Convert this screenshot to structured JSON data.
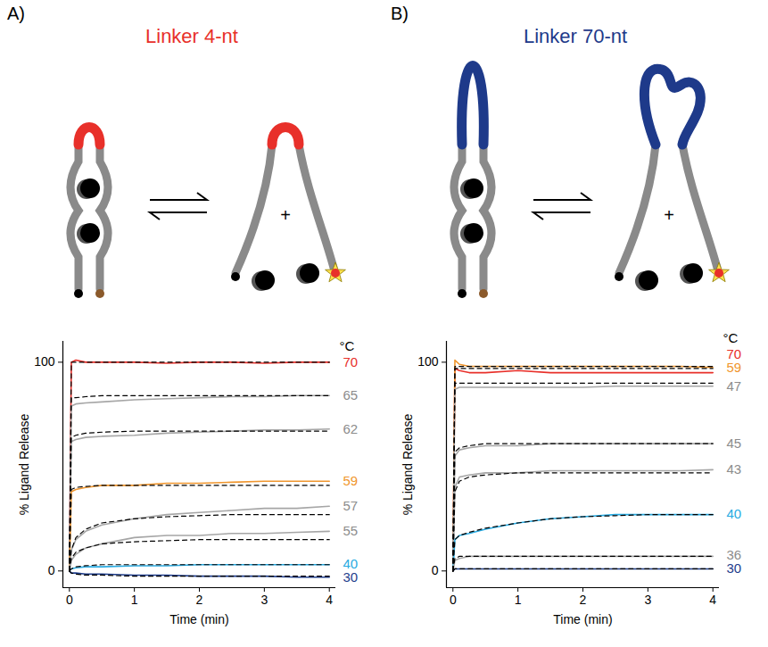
{
  "chart_data": [
    {
      "type": "line",
      "panel": "A)",
      "title": "Linker 4-nt",
      "color": "#e8302a",
      "diagram": {
        "plus": "+"
      },
      "x_label": "Time (min)",
      "y_label": "% Ligand Release",
      "legend_title": "°C",
      "xlim": [
        -0.1,
        4.1
      ],
      "xticks": [
        0,
        1,
        2,
        3,
        4
      ],
      "ylim": [
        -8,
        110
      ],
      "yticks": [
        0,
        100
      ],
      "x": [
        0,
        0.03,
        0.1,
        0.25,
        0.5,
        1,
        1.5,
        2,
        2.5,
        3,
        3.5,
        4
      ],
      "series": [
        {
          "name": "70",
          "color": "#e8302a",
          "values": [
            0,
            100,
            101,
            100,
            100,
            100,
            99.5,
            100,
            100,
            99.5,
            100,
            100
          ],
          "fit": [
            0,
            100,
            100,
            100,
            100,
            100,
            100,
            100,
            100,
            100,
            100,
            100
          ]
        },
        {
          "name": "65",
          "color": "#a6a6a6",
          "values": [
            0,
            79,
            80,
            80.5,
            81,
            82,
            82.5,
            83,
            83.5,
            83.5,
            84,
            84
          ],
          "fit": [
            0,
            83,
            83,
            83.5,
            84,
            84,
            84,
            84,
            84,
            84,
            84,
            84
          ]
        },
        {
          "name": "62",
          "color": "#a6a6a6",
          "values": [
            0,
            62,
            63,
            64,
            64.5,
            65,
            66,
            66.5,
            67,
            67.5,
            67.5,
            68
          ],
          "fit": [
            0,
            64,
            65,
            66,
            66.5,
            67,
            67,
            67,
            67,
            67,
            67,
            67
          ]
        },
        {
          "name": "59",
          "color": "#f0962e",
          "values": [
            0,
            38,
            39,
            40,
            41,
            41,
            42,
            42,
            42.5,
            43,
            43,
            43
          ],
          "fit": [
            0,
            39,
            40,
            40.5,
            41,
            41,
            41,
            41,
            41,
            41,
            41,
            41
          ]
        },
        {
          "name": "57",
          "color": "#a6a6a6",
          "values": [
            0,
            10,
            15,
            19,
            22,
            25,
            27,
            28,
            29,
            30,
            30,
            31
          ],
          "fit": [
            0,
            10,
            16,
            20,
            23,
            25,
            26,
            26.5,
            27,
            27,
            27,
            27
          ]
        },
        {
          "name": "55",
          "color": "#a6a6a6",
          "values": [
            0,
            5,
            8,
            11,
            13,
            16,
            17,
            17,
            18,
            18,
            18.5,
            19
          ],
          "fit": [
            0,
            6,
            9,
            11,
            13,
            14,
            14.5,
            15,
            15,
            15,
            15,
            15
          ]
        },
        {
          "name": "40",
          "color": "#29abe2",
          "values": [
            0,
            1,
            1.5,
            2,
            2,
            2.5,
            2.5,
            3,
            3,
            3,
            3,
            3
          ],
          "fit": [
            0,
            1,
            2,
            2.5,
            3,
            3,
            3,
            3,
            3,
            3,
            3,
            3
          ]
        },
        {
          "name": "30",
          "color": "#1f3e8c",
          "values": [
            0,
            -1,
            -1,
            -1.5,
            -1.5,
            -2,
            -2,
            -2.5,
            -2.5,
            -2.5,
            -3,
            -3
          ],
          "fit": [
            0,
            -1,
            -1.5,
            -2,
            -2,
            -2.5,
            -2.5,
            -2.5,
            -2.5,
            -2.5,
            -2.5,
            -2.5
          ]
        }
      ]
    },
    {
      "type": "line",
      "panel": "B)",
      "title": "Linker 70-nt",
      "color": "#1e3a8a",
      "diagram": {
        "plus": "+"
      },
      "x_label": "Time (min)",
      "y_label": "% Ligand Release",
      "legend_title": "°C",
      "xlim": [
        -0.1,
        4.1
      ],
      "xticks": [
        0,
        1,
        2,
        3,
        4
      ],
      "ylim": [
        -8,
        110
      ],
      "yticks": [
        0,
        100
      ],
      "x": [
        0,
        0.03,
        0.1,
        0.25,
        0.5,
        1,
        1.5,
        2,
        2.5,
        3,
        3.5,
        4
      ],
      "series": [
        {
          "name": "70",
          "color": "#e8302a",
          "values": [
            0,
            97,
            96,
            95,
            95,
            96,
            95,
            95,
            95,
            95,
            95,
            95
          ],
          "fit": [
            0,
            97,
            97,
            97,
            97,
            97,
            97,
            97,
            97,
            97,
            97,
            97
          ]
        },
        {
          "name": "59",
          "color": "#f0962e",
          "values": [
            0,
            101,
            99,
            98,
            98,
            98,
            98,
            98,
            98,
            98,
            98,
            97.5
          ],
          "fit": [
            0,
            98,
            98,
            98,
            98,
            98,
            98,
            98,
            98,
            98,
            98,
            98
          ]
        },
        {
          "name": "47",
          "color": "#a6a6a6",
          "values": [
            0,
            87,
            88,
            88,
            88,
            88,
            88,
            88,
            88.5,
            88.5,
            88.5,
            88.5
          ],
          "fit": [
            0,
            90,
            90,
            90,
            90,
            90,
            90,
            90,
            90,
            90,
            90,
            90
          ]
        },
        {
          "name": "45",
          "color": "#a6a6a6",
          "values": [
            0,
            55,
            58,
            59,
            60,
            60,
            61,
            61,
            61,
            61,
            61,
            61
          ],
          "fit": [
            0,
            57,
            59,
            60,
            61,
            61,
            61,
            61,
            61,
            61,
            61,
            61
          ]
        },
        {
          "name": "43",
          "color": "#a6a6a6",
          "values": [
            0,
            40,
            45,
            46,
            47,
            47,
            48,
            48,
            48,
            48,
            48,
            48.5
          ],
          "fit": [
            0,
            38,
            43,
            45,
            46,
            47,
            47,
            47,
            47,
            47,
            47,
            47
          ]
        },
        {
          "name": "40",
          "color": "#29abe2",
          "values": [
            0,
            15,
            17,
            18,
            20,
            23,
            25,
            26,
            27,
            27,
            27,
            27
          ],
          "fit": [
            0,
            15,
            17,
            18.5,
            20.5,
            23,
            25,
            26,
            26.5,
            27,
            27,
            27
          ]
        },
        {
          "name": "36",
          "color": "#a6a6a6",
          "values": [
            0,
            5,
            6,
            7,
            7,
            7,
            7,
            7,
            7,
            7,
            7,
            7
          ],
          "fit": [
            0,
            6,
            7,
            7,
            7,
            7,
            7,
            7,
            7,
            7,
            7,
            7
          ]
        },
        {
          "name": "30",
          "color": "#1f3e8c",
          "values": [
            0,
            1,
            1,
            1,
            1,
            1,
            1,
            1,
            1,
            1,
            1,
            1
          ],
          "fit": [
            0,
            1,
            1,
            1,
            1,
            1,
            1,
            1,
            1,
            1,
            1,
            1
          ]
        }
      ]
    }
  ]
}
